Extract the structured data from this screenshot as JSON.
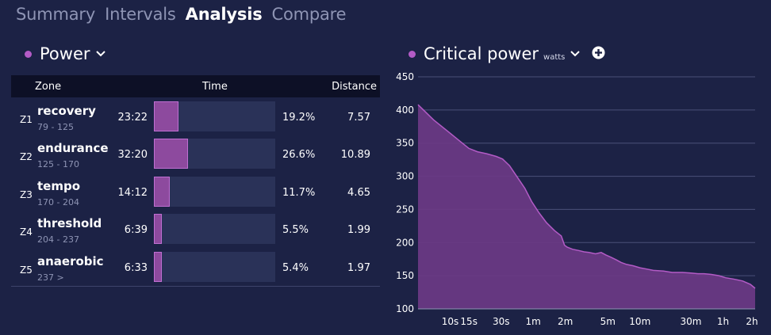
{
  "tabs": [
    {
      "label": "Summary",
      "active": false
    },
    {
      "label": "Intervals",
      "active": false
    },
    {
      "label": "Analysis",
      "active": true
    },
    {
      "label": "Compare",
      "active": false
    }
  ],
  "power_panel": {
    "title": "Power",
    "headers": {
      "zone": "Zone",
      "time": "Time",
      "distance": "Distance"
    },
    "zones": [
      {
        "id": "Z1",
        "name": "recovery",
        "range": "79 - 125",
        "time": "23:22",
        "percent": "19.2%",
        "fraction": 0.192,
        "distance": "7.57"
      },
      {
        "id": "Z2",
        "name": "endurance",
        "range": "125 - 170",
        "time": "32:20",
        "percent": "26.6%",
        "fraction": 0.266,
        "distance": "10.89"
      },
      {
        "id": "Z3",
        "name": "tempo",
        "range": "170 - 204",
        "time": "14:12",
        "percent": "11.7%",
        "fraction": 0.117,
        "distance": "4.65"
      },
      {
        "id": "Z4",
        "name": "threshold",
        "range": "204 - 237",
        "time": "6:39",
        "percent": "5.5%",
        "fraction": 0.055,
        "distance": "1.99"
      },
      {
        "id": "Z5",
        "name": "anaerobic",
        "range": "237  >",
        "time": "6:33",
        "percent": "5.4%",
        "fraction": 0.054,
        "distance": "1.97"
      }
    ]
  },
  "critical_power_panel": {
    "title": "Critical power",
    "units": "watts"
  },
  "colors": {
    "accent": "#b35bc6",
    "bar_fill": "#8d4a9e",
    "background": "#1c2245"
  },
  "icons": [
    "chevron-down-icon",
    "plus-circle-icon",
    "status-dot-icon"
  ],
  "chart_data": {
    "type": "area",
    "title": "Critical power",
    "ylabel": "watts",
    "x_scale": "log",
    "ylim": [
      100,
      450
    ],
    "yticks": [
      100,
      150,
      200,
      250,
      300,
      350,
      400,
      450
    ],
    "xticks": [
      {
        "label": "10s",
        "seconds": 10
      },
      {
        "label": "15s",
        "seconds": 15
      },
      {
        "label": "30s",
        "seconds": 30
      },
      {
        "label": "1m",
        "seconds": 60
      },
      {
        "label": "2m",
        "seconds": 120
      },
      {
        "label": "5m",
        "seconds": 300
      },
      {
        "label": "10m",
        "seconds": 600
      },
      {
        "label": "30m",
        "seconds": 1800
      },
      {
        "label": "1h",
        "seconds": 3600
      },
      {
        "label": "2h",
        "seconds": 7200
      }
    ],
    "grid": true,
    "series": [
      {
        "x": [
          5,
          7,
          10,
          13,
          15,
          18,
          22,
          27,
          31,
          36,
          42,
          50,
          58,
          68,
          80,
          95,
          110,
          118,
          125,
          140,
          160,
          180,
          200,
          230,
          260,
          290,
          320,
          360,
          400,
          450,
          520,
          600,
          700,
          800,
          1000,
          1200,
          1500,
          1800,
          2100,
          2400,
          2800,
          3300,
          3800,
          4500,
          5500,
          6500,
          7200
        ],
        "y": [
          408,
          385,
          365,
          350,
          342,
          337,
          334,
          330,
          326,
          316,
          300,
          282,
          262,
          245,
          230,
          218,
          210,
          196,
          193,
          190,
          188,
          186,
          185,
          183,
          185,
          181,
          178,
          174,
          170,
          167,
          165,
          162,
          160,
          158,
          157,
          155,
          155,
          154,
          153,
          153,
          152,
          150,
          147,
          145,
          142,
          137,
          131
        ]
      }
    ]
  }
}
